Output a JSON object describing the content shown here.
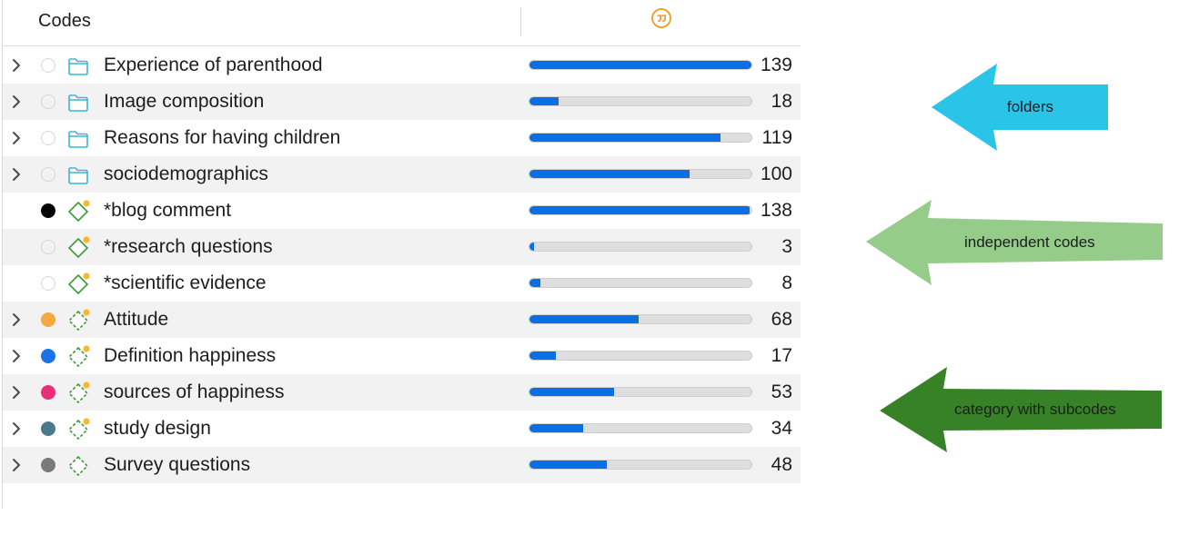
{
  "header": {
    "title": "Codes",
    "quote_icon_color": "#f39a1f"
  },
  "rows": [
    {
      "kind": "folder",
      "expandable": true,
      "dot": "empty",
      "label": "Experience of parenthood",
      "count": "139",
      "fraction": 1.0
    },
    {
      "kind": "folder",
      "expandable": true,
      "dot": "empty",
      "label": "Image composition",
      "count": "18",
      "fraction": 0.13
    },
    {
      "kind": "folder",
      "expandable": true,
      "dot": "empty",
      "label": "Reasons for having children",
      "count": "119",
      "fraction": 0.86
    },
    {
      "kind": "folder",
      "expandable": true,
      "dot": "empty",
      "label": "sociodemographics",
      "count": "100",
      "fraction": 0.72
    },
    {
      "kind": "code",
      "expandable": false,
      "dot": "#000000",
      "label": "*blog comment",
      "count": "138",
      "fraction": 0.99
    },
    {
      "kind": "code",
      "expandable": false,
      "dot": "empty",
      "label": "*research questions",
      "count": "3",
      "fraction": 0.02
    },
    {
      "kind": "code",
      "expandable": false,
      "dot": "empty",
      "label": "*scientific evidence",
      "count": "8",
      "fraction": 0.05
    },
    {
      "kind": "category",
      "expandable": true,
      "dot": "#f5a941",
      "label": "Attitude",
      "count": "68",
      "fraction": 0.49
    },
    {
      "kind": "category",
      "expandable": true,
      "dot": "#1a73e8",
      "label": "Definition happiness",
      "count": "17",
      "fraction": 0.12
    },
    {
      "kind": "category",
      "expandable": true,
      "dot": "#e8307a",
      "label": "sources of happiness",
      "count": "53",
      "fraction": 0.38
    },
    {
      "kind": "category",
      "expandable": true,
      "dot": "#4a7a8c",
      "label": "study design",
      "count": "34",
      "fraction": 0.24
    },
    {
      "kind": "category-nomemo",
      "expandable": true,
      "dot": "#7a7a7a",
      "label": "Survey questions",
      "count": "48",
      "fraction": 0.35
    }
  ],
  "callouts": [
    {
      "label": "folders",
      "color": "#29c4e8"
    },
    {
      "label": "independent codes",
      "color": "#96cc8a"
    },
    {
      "label": "category with subcodes",
      "color": "#378227"
    }
  ],
  "colors": {
    "folder_icon": "#3cb6d3",
    "code_icon": "#3a9a3a",
    "memo_dot": "#f7b731",
    "bar_fill": "#0a6fe6"
  }
}
